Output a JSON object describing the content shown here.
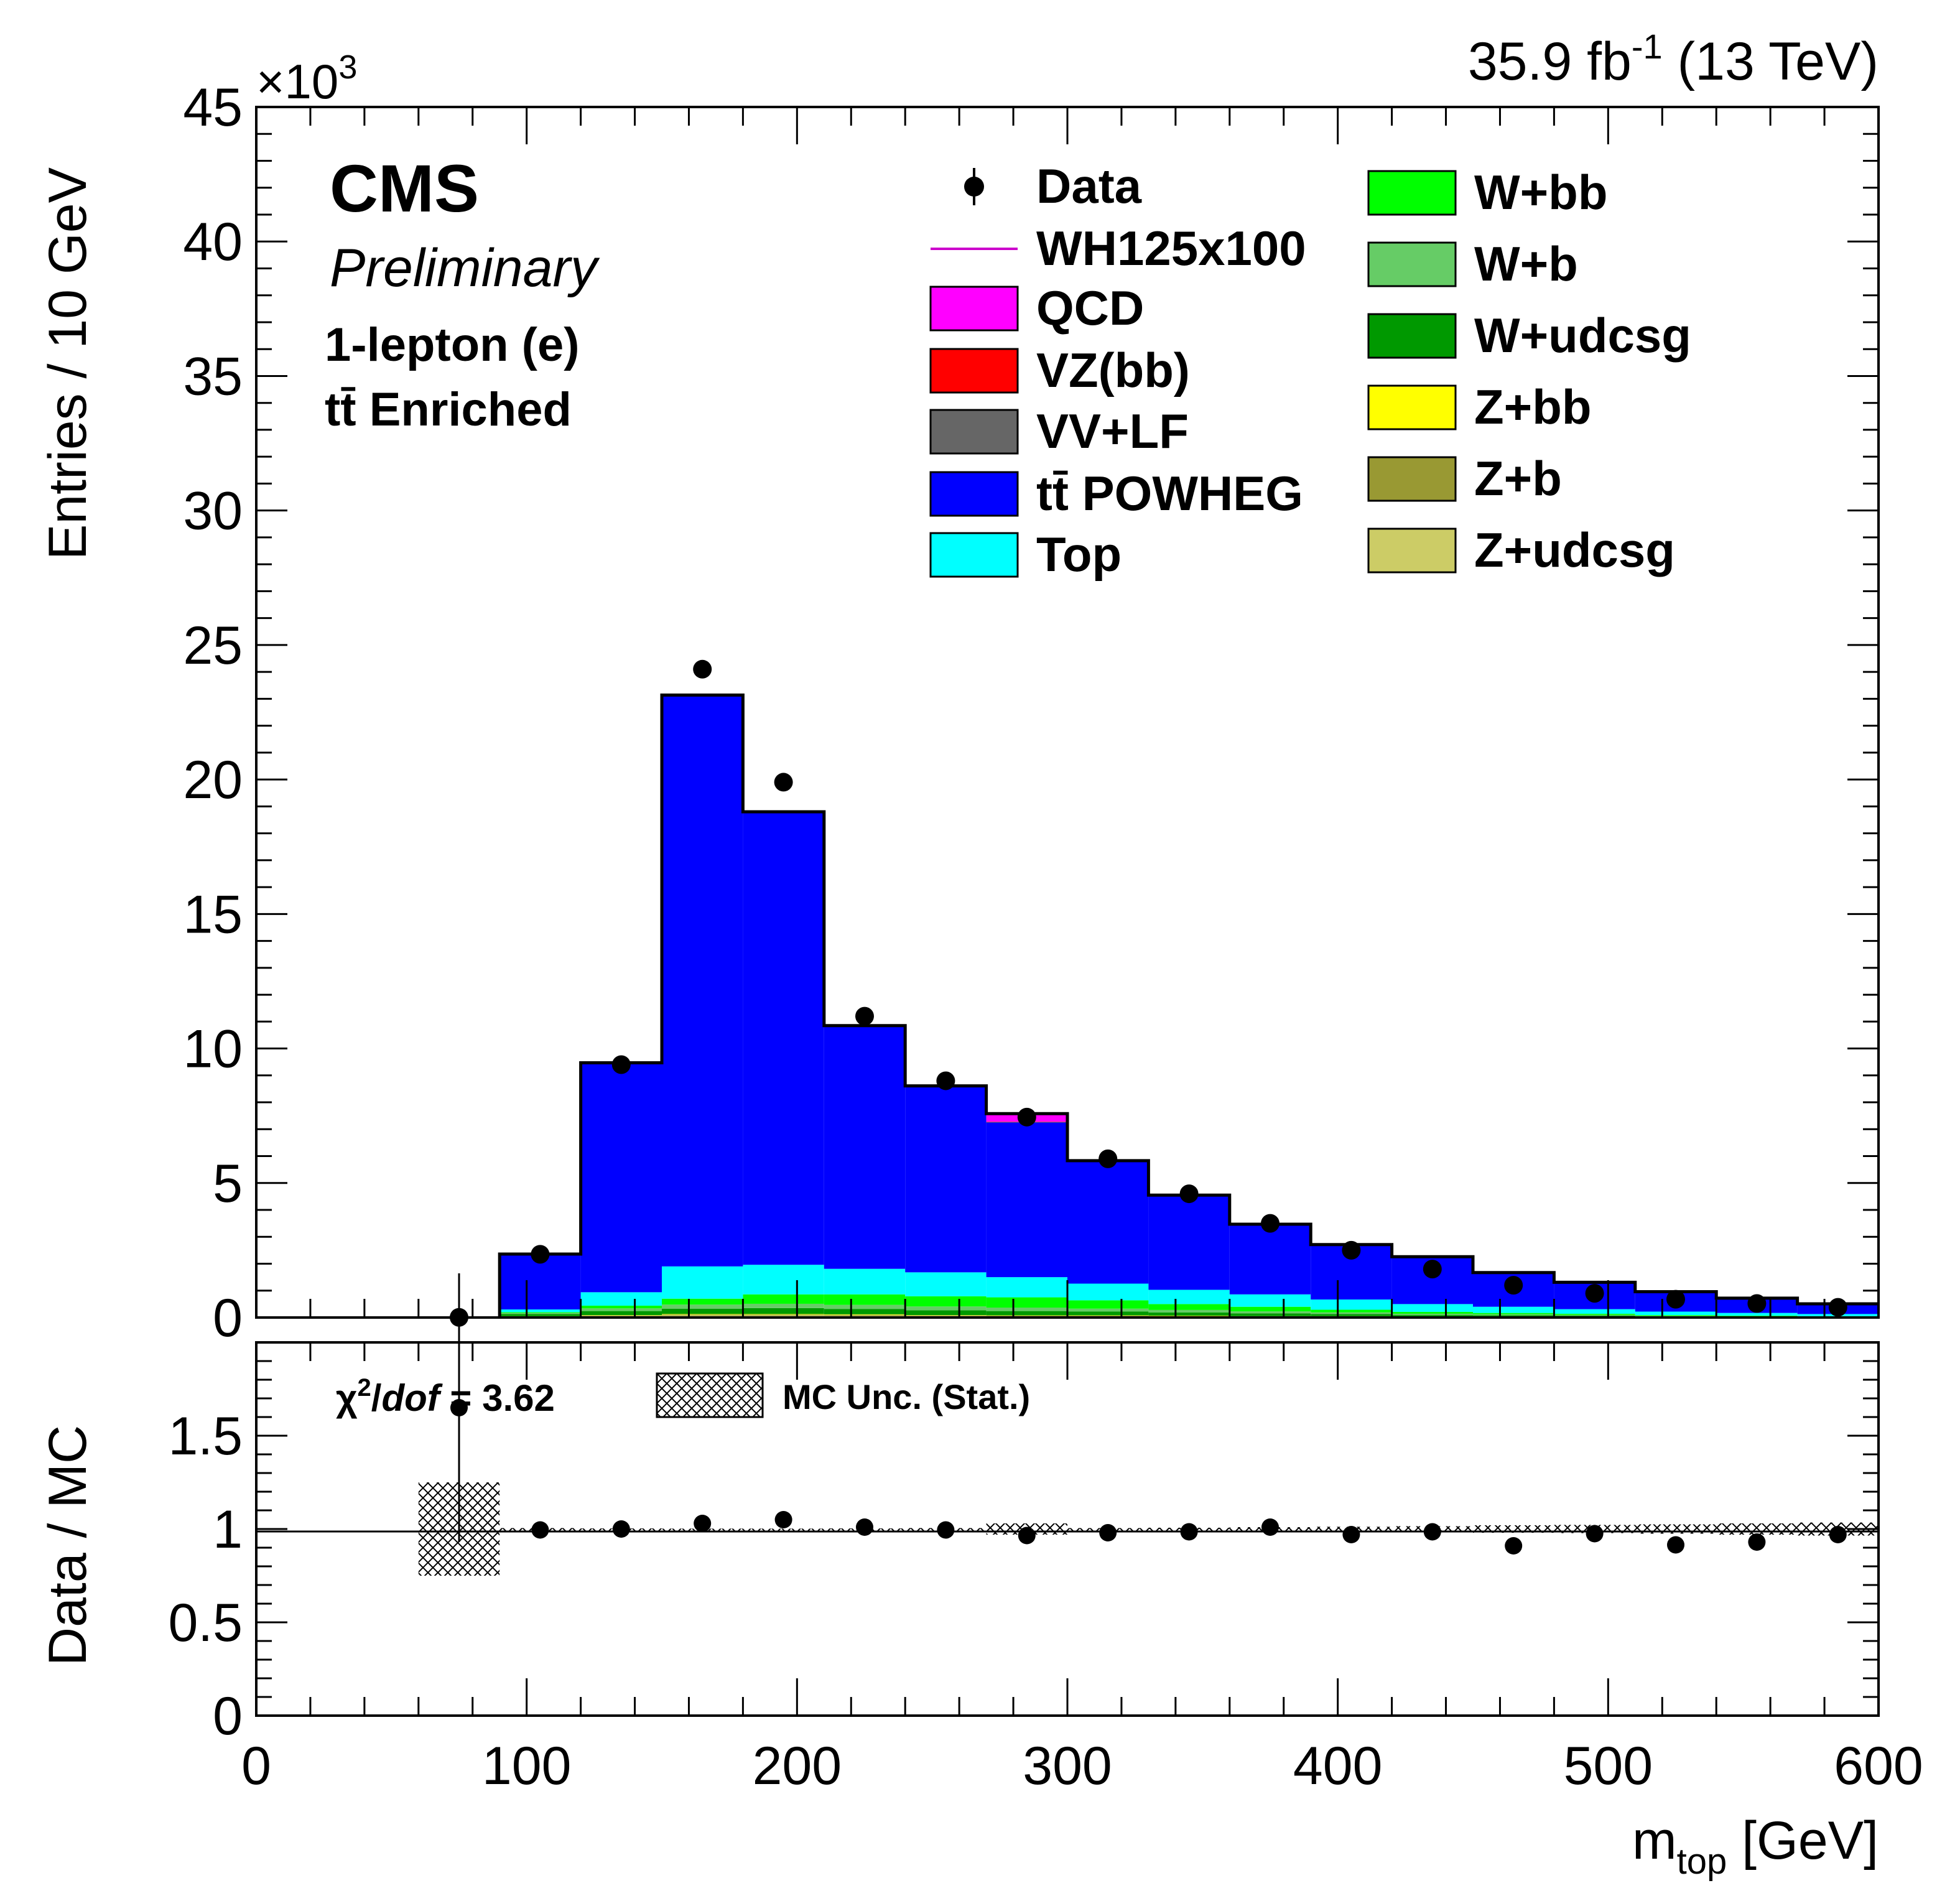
{
  "header": {
    "lumi_label": "35.9 fb",
    "lumi_exp": "-1",
    "energy_label": " (13 TeV)",
    "exponent_base": "×10",
    "exponent_power": "3"
  },
  "labels": {
    "cms": "CMS",
    "preliminary": "Preliminary",
    "channel": "1-lepton (e)",
    "region": "tt̄ Enriched",
    "chi2_symbol": "χ",
    "chi2_power": "2",
    "chi2_slash": "/",
    "chi2_dof": "dof",
    "chi2_value": " = 3.62",
    "unc_label": "MC Unc. (Stat.)",
    "ylabel_main": "Entries / 10 GeV",
    "ylabel_ratio": "Data / MC",
    "xlabel_m": "m",
    "xlabel_sub": "top",
    "xlabel_unit": " [GeV]"
  },
  "legend": [
    {
      "label": "Data",
      "kind": "marker",
      "color": "#000000"
    },
    {
      "label": "WH125x100",
      "kind": "line",
      "color": "#cc00cc"
    },
    {
      "label": "QCD",
      "kind": "box",
      "color": "#ff00ff"
    },
    {
      "label": "VZ(bb)",
      "kind": "box",
      "color": "#ff0000"
    },
    {
      "label": "VV+LF",
      "kind": "box",
      "color": "#666666"
    },
    {
      "label": "tt̄ POWHEG",
      "kind": "box",
      "color": "#0000ff"
    },
    {
      "label": "Top",
      "kind": "box",
      "color": "#00ffff"
    },
    {
      "label": "W+bb",
      "kind": "box",
      "color": "#00ff00"
    },
    {
      "label": "W+b",
      "kind": "box",
      "color": "#66cc66"
    },
    {
      "label": "W+udcsg",
      "kind": "box",
      "color": "#009900"
    },
    {
      "label": "Z+bb",
      "kind": "box",
      "color": "#ffff00"
    },
    {
      "label": "Z+b",
      "kind": "box",
      "color": "#999933"
    },
    {
      "label": "Z+udcsg",
      "kind": "box",
      "color": "#cccc66"
    }
  ],
  "chart_data": [
    {
      "type": "bar",
      "stacked": true,
      "bin_edges": [
        0,
        30,
        60,
        90,
        120,
        150,
        180,
        210,
        240,
        270,
        300,
        330,
        360,
        390,
        420,
        450,
        480,
        510,
        540,
        570,
        600
      ],
      "xlim": [
        0,
        600
      ],
      "ylim": [
        0,
        45
      ],
      "yscale_factor": "x10^3",
      "y_ticks": [
        "0",
        "5",
        "10",
        "15",
        "20",
        "25",
        "30",
        "35",
        "40",
        "45"
      ],
      "x_ticks": [
        "0",
        "100",
        "200",
        "300",
        "400",
        "500",
        "600"
      ],
      "series": [
        {
          "name": "Z+udcsg",
          "color": "#cccc66",
          "values": [
            0,
            0,
            0,
            0.03,
            0.06,
            0.08,
            0.08,
            0.07,
            0.06,
            0.05,
            0.05,
            0.04,
            0.03,
            0.03,
            0.02,
            0.02,
            0.02,
            0.01,
            0.01,
            0.01
          ]
        },
        {
          "name": "Z+b",
          "color": "#999933",
          "values": [
            0,
            0,
            0,
            0.01,
            0.02,
            0.03,
            0.03,
            0.03,
            0.02,
            0.02,
            0.02,
            0.02,
            0.01,
            0.01,
            0.01,
            0.01,
            0.01,
            0,
            0,
            0
          ]
        },
        {
          "name": "Z+bb",
          "color": "#ffff00",
          "values": [
            0,
            0,
            0,
            0.01,
            0.01,
            0.02,
            0.02,
            0.02,
            0.01,
            0.01,
            0.01,
            0.01,
            0.01,
            0.01,
            0,
            0,
            0,
            0,
            0,
            0
          ]
        },
        {
          "name": "W+udcsg",
          "color": "#009900",
          "values": [
            0,
            0,
            0,
            0.08,
            0.15,
            0.2,
            0.22,
            0.2,
            0.18,
            0.16,
            0.14,
            0.12,
            0.1,
            0.08,
            0.06,
            0.05,
            0.04,
            0.03,
            0.02,
            0.02
          ]
        },
        {
          "name": "W+b",
          "color": "#66cc66",
          "values": [
            0,
            0,
            0,
            0.04,
            0.1,
            0.15,
            0.16,
            0.15,
            0.14,
            0.13,
            0.11,
            0.09,
            0.08,
            0.06,
            0.05,
            0.04,
            0.03,
            0.02,
            0.02,
            0.01
          ]
        },
        {
          "name": "W+bb",
          "color": "#00ff00",
          "values": [
            0,
            0,
            0,
            0.03,
            0.1,
            0.22,
            0.35,
            0.39,
            0.38,
            0.38,
            0.31,
            0.22,
            0.17,
            0.1,
            0.07,
            0.05,
            0.04,
            0.03,
            0.02,
            0.01
          ]
        },
        {
          "name": "Top",
          "color": "#00ffff",
          "values": [
            0,
            0,
            0,
            0.1,
            0.5,
            1.2,
            1.1,
            0.95,
            0.89,
            0.75,
            0.62,
            0.53,
            0.46,
            0.38,
            0.29,
            0.23,
            0.17,
            0.13,
            0.1,
            0.08
          ]
        },
        {
          "name": "tt̄ POWHEG",
          "color": "#0000ff",
          "values": [
            0,
            0,
            0,
            2.05,
            8.5,
            21.2,
            16.8,
            9.0,
            6.9,
            5.75,
            4.55,
            3.5,
            2.6,
            2.03,
            1.75,
            1.26,
            1.0,
            0.74,
            0.55,
            0.38
          ]
        },
        {
          "name": "VV+LF",
          "color": "#666666",
          "values": [
            0,
            0,
            0,
            0.01,
            0.02,
            0.03,
            0.03,
            0.03,
            0.02,
            0.02,
            0.02,
            0.02,
            0.01,
            0.01,
            0.01,
            0.01,
            0,
            0,
            0,
            0
          ]
        },
        {
          "name": "VZ(bb)",
          "color": "#ff0000",
          "values": [
            0,
            0,
            0,
            0,
            0.01,
            0.01,
            0.01,
            0.01,
            0.01,
            0.01,
            0,
            0,
            0,
            0,
            0,
            0,
            0,
            0,
            0,
            0
          ]
        },
        {
          "name": "QCD",
          "color": "#ff00ff",
          "values": [
            0,
            0,
            0,
            0,
            0,
            0,
            0,
            0,
            0,
            0.3,
            0,
            0,
            0,
            0,
            0,
            0,
            0,
            0,
            0,
            0
          ]
        }
      ],
      "data_points": {
        "name": "Data",
        "x": [
          75,
          105,
          135,
          165,
          195,
          225,
          255,
          285,
          315,
          345,
          375,
          405,
          435,
          465,
          495,
          525,
          555,
          585
        ],
        "y": [
          0.005,
          2.35,
          9.4,
          24.1,
          19.9,
          11.2,
          8.8,
          7.45,
          5.9,
          4.6,
          3.5,
          2.5,
          1.8,
          1.2,
          0.9,
          0.68,
          0.52,
          0.38
        ]
      },
      "xlabel": "m_top [GeV]",
      "ylabel": "Entries / 10 GeV"
    },
    {
      "type": "scatter",
      "xlim": [
        0,
        600
      ],
      "ylim": [
        0,
        2
      ],
      "y_ticks": [
        "0",
        "0.5",
        "1",
        "1.5"
      ],
      "reference_line": 1,
      "ratio": {
        "x": [
          75,
          105,
          135,
          165,
          195,
          225,
          255,
          285,
          315,
          345,
          375,
          405,
          435,
          465,
          495,
          525,
          555,
          585
        ],
        "y": [
          1.65,
          0.995,
          1.0,
          1.03,
          1.05,
          1.01,
          0.995,
          0.965,
          0.98,
          0.985,
          1.01,
          0.97,
          0.985,
          0.91,
          0.975,
          0.915,
          0.93,
          0.97
        ],
        "err": [
          0.72,
          0.01,
          0.01,
          0.01,
          0.01,
          0.01,
          0.01,
          0.01,
          0.01,
          0.01,
          0.01,
          0.01,
          0.015,
          0.02,
          0.02,
          0.025,
          0.03,
          0.035
        ]
      },
      "mc_unc_band": {
        "x_low": [
          60,
          90,
          120,
          150,
          180,
          210,
          240,
          270,
          300,
          330,
          360,
          390,
          420,
          450,
          480,
          510,
          540,
          570
        ],
        "x_high": [
          90,
          120,
          150,
          180,
          210,
          240,
          270,
          300,
          330,
          360,
          390,
          420,
          450,
          480,
          510,
          540,
          570,
          600
        ],
        "low": [
          0.75,
          0.995,
          0.997,
          0.998,
          0.998,
          0.997,
          0.995,
          0.97,
          0.995,
          0.993,
          0.99,
          0.988,
          0.985,
          0.98,
          0.978,
          0.975,
          0.97,
          0.965
        ],
        "high": [
          1.25,
          1.005,
          1.003,
          1.002,
          1.002,
          1.003,
          1.005,
          1.03,
          1.005,
          1.007,
          1.01,
          1.012,
          1.015,
          1.02,
          1.022,
          1.025,
          1.03,
          1.035
        ]
      },
      "xlabel": "m_top [GeV]",
      "ylabel": "Data / MC"
    }
  ]
}
